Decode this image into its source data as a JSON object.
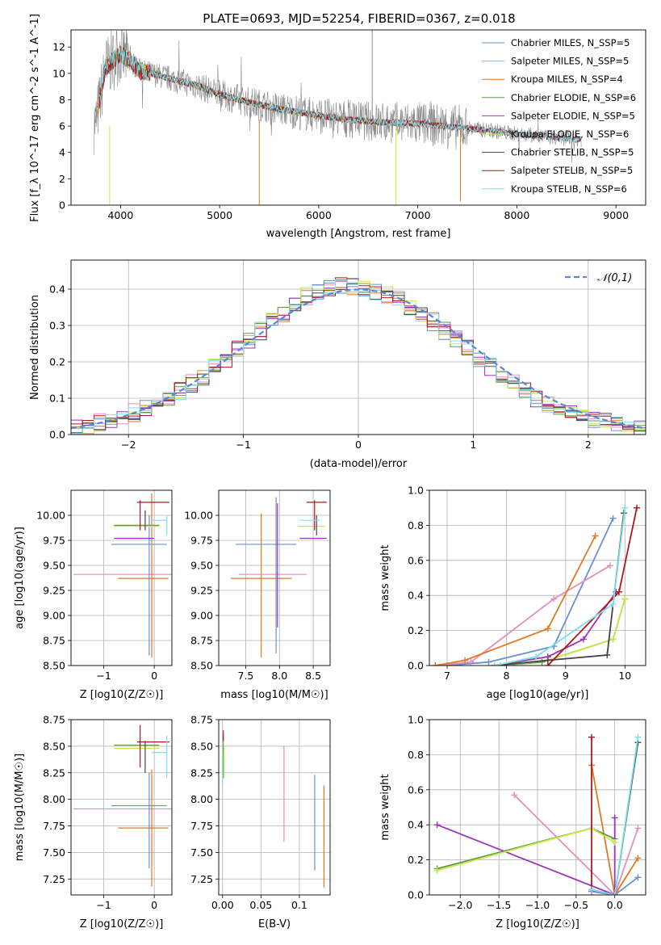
{
  "figure": {
    "title": "PLATE=0693, MJD=52254, FIBERID=0367, z=0.018"
  },
  "colors": {
    "Chabrier MILES": "#6a8fd6",
    "Salpeter MILES": "#e58fbf",
    "Kroupa MILES": "#e07a1e",
    "Chabrier ELODIE": "#5a9a4a",
    "Salpeter ELODIE": "#9b35b8",
    "Kroupa ELODIE": "#c6ea4a",
    "Chabrier STELIB": "#444444",
    "Salpeter STELIB": "#b0151f",
    "Kroupa STELIB": "#7de0e8",
    "data": "#888888",
    "normal": "#5588dd"
  },
  "chart_data": [
    {
      "panel": "spectrum",
      "type": "line",
      "title": "PLATE=0693, MJD=52254, FIBERID=0367, z=0.018",
      "xlabel": "wavelength [Angstrom, rest frame]",
      "ylabel": "Flux [f_λ 10^-17 erg cm^-2 s^-1 A^-1]",
      "xlim": [
        3500,
        9300
      ],
      "ylim": [
        0,
        13.3
      ],
      "xticks": [
        4000,
        5000,
        6000,
        7000,
        8000,
        9000
      ],
      "yticks": [
        0,
        2,
        4,
        6,
        8,
        10,
        12
      ],
      "grid": false,
      "legend_position": "top-right",
      "legend": [
        {
          "label": "Chabrier MILES, N_SSP=5",
          "color": "#6a8fd6"
        },
        {
          "label": "Salpeter MILES, N_SSP=5",
          "color": "#e58fbf"
        },
        {
          "label": "Kroupa MILES, N_SSP=4",
          "color": "#e07a1e"
        },
        {
          "label": "Chabrier ELODIE, N_SSP=6",
          "color": "#5a9a4a"
        },
        {
          "label": "Salpeter ELODIE, N_SSP=5",
          "color": "#9b35b8"
        },
        {
          "label": "Kroupa ELODIE, N_SSP=6",
          "color": "#c6ea4a"
        },
        {
          "label": "Chabrier STELIB, N_SSP=5",
          "color": "#444444"
        },
        {
          "label": "Salpeter STELIB, N_SSP=5",
          "color": "#b0151f"
        },
        {
          "label": "Kroupa STELIB, N_SSP=6",
          "color": "#7de0e8"
        }
      ],
      "model_continuum": {
        "x": [
          3750,
          3850,
          4000,
          4200,
          4500,
          4800,
          5000,
          5300,
          5600,
          6000,
          6300,
          6600,
          7000,
          7400,
          7700,
          8000,
          8300,
          8600
        ],
        "y": [
          6.2,
          10.5,
          11.5,
          10.2,
          9.6,
          9.0,
          8.4,
          7.8,
          7.3,
          6.8,
          6.5,
          6.3,
          6.2,
          5.9,
          5.7,
          5.4,
          5.2,
          5.0
        ]
      },
      "spike_markers": [
        {
          "x": 3890,
          "y_from": 0,
          "y_to": 6,
          "series": "Kroupa ELODIE"
        },
        {
          "x": 5400,
          "y_from": 0,
          "y_to": 6.5,
          "series": "Kroupa MILES"
        },
        {
          "x": 6780,
          "y_from": 0,
          "y_to": 6,
          "series": "Kroupa ELODIE"
        },
        {
          "x": 7430,
          "y_from": 0.3,
          "y_to": 5.8,
          "series": "Kroupa MILES"
        },
        {
          "x": 6540,
          "y_from": 6.5,
          "y_to": 13.3,
          "series": "data"
        }
      ]
    },
    {
      "panel": "residuals",
      "type": "line",
      "xlabel": "(data-model)/error",
      "ylabel": "Normed distribution",
      "xlim": [
        -2.5,
        2.5
      ],
      "ylim": [
        0,
        0.48
      ],
      "xticks": [
        -2,
        -1,
        0,
        1,
        2
      ],
      "yticks": [
        0.0,
        0.1,
        0.2,
        0.3,
        0.4
      ],
      "grid": true,
      "legend_position": "top-right",
      "legend": [
        {
          "label": "𝒩(0,1)",
          "color": "#5588dd"
        }
      ],
      "bin_edges": [
        -2.5,
        -2.4,
        -2.3,
        -2.2,
        -2.1,
        -2.0,
        -1.9,
        -1.8,
        -1.7,
        -1.6,
        -1.5,
        -1.4,
        -1.3,
        -1.2,
        -1.1,
        -1.0,
        -0.9,
        -0.8,
        -0.7,
        -0.6,
        -0.5,
        -0.4,
        -0.3,
        -0.2,
        -0.1,
        0.0,
        0.1,
        0.2,
        0.3,
        0.4,
        0.5,
        0.6,
        0.7,
        0.8,
        0.9,
        1.0,
        1.1,
        1.2,
        1.3,
        1.4,
        1.5,
        1.6,
        1.7,
        1.8,
        1.9,
        2.0,
        2.1,
        2.2,
        2.3,
        2.4,
        2.5
      ],
      "base_distribution": [
        0.018,
        0.025,
        0.033,
        0.04,
        0.05,
        0.06,
        0.07,
        0.085,
        0.1,
        0.12,
        0.14,
        0.16,
        0.185,
        0.21,
        0.235,
        0.26,
        0.285,
        0.31,
        0.335,
        0.36,
        0.38,
        0.395,
        0.405,
        0.41,
        0.405,
        0.4,
        0.395,
        0.385,
        0.37,
        0.35,
        0.33,
        0.31,
        0.285,
        0.26,
        0.235,
        0.21,
        0.185,
        0.16,
        0.14,
        0.12,
        0.1,
        0.085,
        0.07,
        0.06,
        0.05,
        0.042,
        0.035,
        0.028,
        0.022,
        0.018
      ]
    },
    {
      "panel": "age_vs_Z",
      "type": "scatter",
      "xlabel": "Z [log10(Z/Z☉)]",
      "ylabel": "age [log10(age/yr)]",
      "xlim": [
        -1.65,
        0.35
      ],
      "ylim": [
        8.5,
        10.25
      ],
      "xticks": [
        -1,
        0
      ],
      "yticks": [
        8.5,
        8.75,
        9.0,
        9.25,
        9.5,
        9.75,
        10.0
      ],
      "grid": true,
      "errorbars": [
        {
          "series": "Salpeter MILES",
          "x": -0.6,
          "xerr": 1.0,
          "y": 9.41,
          "yerr": 0.0
        },
        {
          "series": "Kroupa MILES",
          "x": -0.22,
          "xerr": 0.5,
          "y": 9.37,
          "yerr": 0.0
        },
        {
          "series": "Kroupa MILES",
          "x": -0.05,
          "xerr": 0.0,
          "y": 9.4,
          "yerr": 0.82
        },
        {
          "series": "Chabrier MILES",
          "x": -0.1,
          "xerr": 0.0,
          "y": 9.3,
          "yerr": 0.7
        },
        {
          "series": "Chabrier MILES",
          "x": -0.3,
          "xerr": 0.55,
          "y": 9.71,
          "yerr": 0.0
        },
        {
          "series": "Salpeter ELODIE",
          "x": -0.4,
          "xerr": 0.4,
          "y": 9.77,
          "yerr": 0.0
        },
        {
          "series": "Kroupa ELODIE",
          "x": -0.35,
          "xerr": 0.45,
          "y": 9.89,
          "yerr": 0.0
        },
        {
          "series": "Chabrier ELODIE",
          "x": -0.35,
          "xerr": 0.45,
          "y": 9.9,
          "yerr": 0.0
        },
        {
          "series": "Salpeter STELIB",
          "x": -0.02,
          "xerr": 0.32,
          "y": 10.13,
          "yerr": 0.0
        },
        {
          "series": "Salpeter STELIB",
          "x": -0.28,
          "xerr": 0.0,
          "y": 10.0,
          "yerr": 0.15
        },
        {
          "series": "Chabrier STELIB",
          "x": -0.18,
          "xerr": 0.0,
          "y": 9.95,
          "yerr": 0.1
        },
        {
          "series": "Kroupa STELIB",
          "x": 0.25,
          "xerr": 0.0,
          "y": 9.9,
          "yerr": 0.1
        },
        {
          "series": "Kroupa STELIB",
          "x": 0.1,
          "xerr": 0.15,
          "y": 9.95,
          "yerr": 0.0
        }
      ]
    },
    {
      "panel": "age_vs_mass",
      "type": "scatter",
      "xlabel": "mass [log10(M/M☉)]",
      "ylabel": "",
      "xlim": [
        7.1,
        8.75
      ],
      "ylim": [
        8.5,
        10.25
      ],
      "xticks": [
        7.5,
        8.0,
        8.5
      ],
      "yticks": [
        8.5,
        8.75,
        9.0,
        9.25,
        9.5,
        9.75,
        10.0
      ],
      "grid": true,
      "errorbars": [
        {
          "series": "Kroupa MILES",
          "x": 7.73,
          "xerr": 0.45,
          "y": 9.37,
          "yerr": 0.0
        },
        {
          "series": "Kroupa MILES",
          "x": 7.73,
          "xerr": 0.0,
          "y": 9.3,
          "yerr": 0.72
        },
        {
          "series": "Salpeter MILES",
          "x": 7.9,
          "xerr": 0.5,
          "y": 9.41,
          "yerr": 0.0
        },
        {
          "series": "Chabrier MILES",
          "x": 7.95,
          "xerr": 0.0,
          "y": 9.4,
          "yerr": 0.78
        },
        {
          "series": "Chabrier MILES",
          "x": 7.8,
          "xerr": 0.45,
          "y": 9.71,
          "yerr": 0.0
        },
        {
          "series": "Salpeter ELODIE",
          "x": 7.97,
          "xerr": 0.0,
          "y": 9.5,
          "yerr": 0.62
        },
        {
          "series": "Salpeter ELODIE",
          "x": 8.5,
          "xerr": 0.2,
          "y": 9.77,
          "yerr": 0.0
        },
        {
          "series": "Kroupa ELODIE",
          "x": 8.48,
          "xerr": 0.2,
          "y": 9.89,
          "yerr": 0.0
        },
        {
          "series": "Salpeter STELIB",
          "x": 8.55,
          "xerr": 0.15,
          "y": 10.13,
          "yerr": 0.0
        },
        {
          "series": "Salpeter STELIB",
          "x": 8.52,
          "xerr": 0.0,
          "y": 10.0,
          "yerr": 0.15
        },
        {
          "series": "Chabrier STELIB",
          "x": 8.55,
          "xerr": 0.0,
          "y": 9.9,
          "yerr": 0.1
        },
        {
          "series": "Kroupa STELIB",
          "x": 8.45,
          "xerr": 0.15,
          "y": 9.95,
          "yerr": 0.0
        }
      ]
    },
    {
      "panel": "massweight_vs_age",
      "type": "line",
      "xlabel": "age [log10(age/yr)]",
      "ylabel": "mass weight",
      "xlim": [
        6.7,
        10.35
      ],
      "ylim": [
        0,
        1.0
      ],
      "xticks": [
        7,
        8,
        9,
        10
      ],
      "yticks": [
        0.0,
        0.2,
        0.4,
        0.6,
        0.8,
        1.0
      ],
      "grid": true,
      "series": [
        {
          "name": "Chabrier MILES",
          "x": [
            7.0,
            7.7,
            8.8,
            9.8
          ],
          "y": [
            0.0,
            0.02,
            0.11,
            0.84
          ]
        },
        {
          "name": "Salpeter MILES",
          "x": [
            6.8,
            7.4,
            8.8,
            9.75
          ],
          "y": [
            0.0,
            0.02,
            0.38,
            0.57
          ]
        },
        {
          "name": "Kroupa MILES",
          "x": [
            6.8,
            7.3,
            8.7,
            9.5
          ],
          "y": [
            0.0,
            0.03,
            0.21,
            0.74
          ]
        },
        {
          "name": "Chabrier ELODIE",
          "x": [
            7.9,
            8.6,
            9.8,
            10.0
          ],
          "y": [
            0.0,
            0.02,
            0.15,
            0.38
          ]
        },
        {
          "name": "Salpeter ELODIE",
          "x": [
            7.8,
            8.7,
            9.3,
            9.85
          ],
          "y": [
            0.0,
            0.05,
            0.15,
            0.42
          ]
        },
        {
          "name": "Kroupa ELODIE",
          "x": [
            7.9,
            8.7,
            9.8,
            10.0
          ],
          "y": [
            0.0,
            0.03,
            0.15,
            0.38
          ]
        },
        {
          "name": "Chabrier STELIB",
          "x": [
            7.8,
            8.7,
            9.7,
            9.98
          ],
          "y": [
            0.0,
            0.03,
            0.06,
            0.87
          ]
        },
        {
          "name": "Salpeter STELIB",
          "x": [
            8.7,
            9.9,
            10.2
          ],
          "y": [
            0.0,
            0.42,
            0.9
          ]
        },
        {
          "name": "Kroupa STELIB",
          "x": [
            7.8,
            8.5,
            9.8,
            10.0
          ],
          "y": [
            0.0,
            0.05,
            0.35,
            0.9
          ]
        }
      ]
    },
    {
      "panel": "mass_vs_Z",
      "type": "scatter",
      "xlabel": "Z [log10(Z/Z☉)]",
      "ylabel": "mass [log10(M/M☉)]",
      "xlim": [
        -1.65,
        0.35
      ],
      "ylim": [
        7.1,
        8.75
      ],
      "xticks": [
        -1,
        0
      ],
      "yticks": [
        7.25,
        7.5,
        7.75,
        8.0,
        8.25,
        8.5,
        8.75
      ],
      "grid": true,
      "errorbars": [
        {
          "series": "Salpeter MILES",
          "x": -0.6,
          "xerr": 1.0,
          "y": 7.91,
          "yerr": 0.0
        },
        {
          "series": "Kroupa MILES",
          "x": -0.22,
          "xerr": 0.5,
          "y": 7.73,
          "yerr": 0.0
        },
        {
          "series": "Kroupa MILES",
          "x": -0.05,
          "xerr": 0.0,
          "y": 7.73,
          "yerr": 0.55
        },
        {
          "series": "Chabrier MILES",
          "x": -0.3,
          "xerr": 0.55,
          "y": 7.94,
          "yerr": 0.0
        },
        {
          "series": "Chabrier MILES",
          "x": -0.1,
          "xerr": 0.0,
          "y": 7.8,
          "yerr": 0.45
        },
        {
          "series": "Chabrier ELODIE",
          "x": -0.35,
          "xerr": 0.45,
          "y": 8.51,
          "yerr": 0.0
        },
        {
          "series": "Kroupa ELODIE",
          "x": -0.35,
          "xerr": 0.45,
          "y": 8.48,
          "yerr": 0.0
        },
        {
          "series": "Salpeter STELIB",
          "x": -0.02,
          "xerr": 0.32,
          "y": 8.54,
          "yerr": 0.0
        },
        {
          "series": "Salpeter STELIB",
          "x": -0.28,
          "xerr": 0.0,
          "y": 8.5,
          "yerr": 0.2
        },
        {
          "series": "Chabrier STELIB",
          "x": -0.18,
          "xerr": 0.0,
          "y": 8.4,
          "yerr": 0.15
        },
        {
          "series": "Kroupa STELIB",
          "x": 0.25,
          "xerr": 0.0,
          "y": 8.4,
          "yerr": 0.2
        },
        {
          "series": "Kroupa STELIB",
          "x": 0.1,
          "xerr": 0.15,
          "y": 8.44,
          "yerr": 0.0
        }
      ]
    },
    {
      "panel": "mass_vs_EBV",
      "type": "scatter",
      "xlabel": "E(B-V)",
      "ylabel": "",
      "xlim": [
        -0.005,
        0.14
      ],
      "ylim": [
        7.1,
        8.75
      ],
      "xticks": [
        0.0,
        0.05,
        0.1
      ],
      "yticks": [
        7.25,
        7.5,
        7.75,
        8.0,
        8.25,
        8.5,
        8.75
      ],
      "grid": true,
      "errorbars": [
        {
          "series": "Chabrier ELODIE",
          "x": 0.001,
          "xerr": 0.0,
          "y": 8.4,
          "yerr": 0.2
        },
        {
          "series": "Kroupa ELODIE",
          "x": 0.002,
          "xerr": 0.0,
          "y": 8.35,
          "yerr": 0.15
        },
        {
          "series": "Salpeter STELIB",
          "x": 0.001,
          "xerr": 0.0,
          "y": 8.6,
          "yerr": 0.05
        },
        {
          "series": "Kroupa STELIB",
          "x": 0.0,
          "xerr": 0.0,
          "y": 8.3,
          "yerr": 0.15
        },
        {
          "series": "Salpeter MILES",
          "x": 0.08,
          "xerr": 0.0,
          "y": 8.05,
          "yerr": 0.45
        },
        {
          "series": "Chabrier MILES",
          "x": 0.12,
          "xerr": 0.0,
          "y": 7.78,
          "yerr": 0.45
        },
        {
          "series": "Kroupa MILES",
          "x": 0.132,
          "xerr": 0.0,
          "y": 7.65,
          "yerr": 0.48
        }
      ]
    },
    {
      "panel": "massweight_vs_Z",
      "type": "line",
      "xlabel": "Z [log10(Z/Z☉)]",
      "ylabel": "mass weight",
      "xlim": [
        -2.4,
        0.4
      ],
      "ylim": [
        0,
        1.0
      ],
      "xticks": [
        -2.0,
        -1.5,
        -1.0,
        -0.5,
        0.0
      ],
      "yticks": [
        0.0,
        0.2,
        0.4,
        0.6,
        0.8,
        1.0
      ],
      "grid": true,
      "series": [
        {
          "name": "Chabrier MILES",
          "x": [
            -0.3,
            0.0,
            0.3
          ],
          "y": [
            0.02,
            0.0,
            0.1
          ]
        },
        {
          "name": "Salpeter MILES",
          "x": [
            -1.3,
            0.0,
            0.3
          ],
          "y": [
            0.57,
            0.0,
            0.38
          ]
        },
        {
          "name": "Kroupa MILES",
          "x": [
            -0.3,
            0.0,
            0.3
          ],
          "y": [
            0.74,
            0.0,
            0.21
          ]
        },
        {
          "name": "Chabrier ELODIE",
          "x": [
            -2.3,
            -0.3,
            0.0
          ],
          "y": [
            0.15,
            0.38,
            0.32
          ]
        },
        {
          "name": "Salpeter ELODIE",
          "x": [
            -2.3,
            0.0,
            0.0
          ],
          "y": [
            0.4,
            0.0,
            0.44
          ]
        },
        {
          "name": "Kroupa ELODIE",
          "x": [
            -2.3,
            -0.3,
            0.0
          ],
          "y": [
            0.14,
            0.38,
            0.3
          ]
        },
        {
          "name": "Chabrier STELIB",
          "x": [
            -0.3,
            0.0,
            0.3
          ],
          "y": [
            0.03,
            0.0,
            0.87
          ]
        },
        {
          "name": "Salpeter STELIB",
          "x": [
            -0.3,
            -0.3,
            0.0
          ],
          "y": [
            0.9,
            0.03,
            0.0
          ]
        },
        {
          "name": "Kroupa STELIB",
          "x": [
            -0.3,
            0.0,
            0.3
          ],
          "y": [
            0.03,
            0.0,
            0.9
          ]
        }
      ]
    }
  ]
}
